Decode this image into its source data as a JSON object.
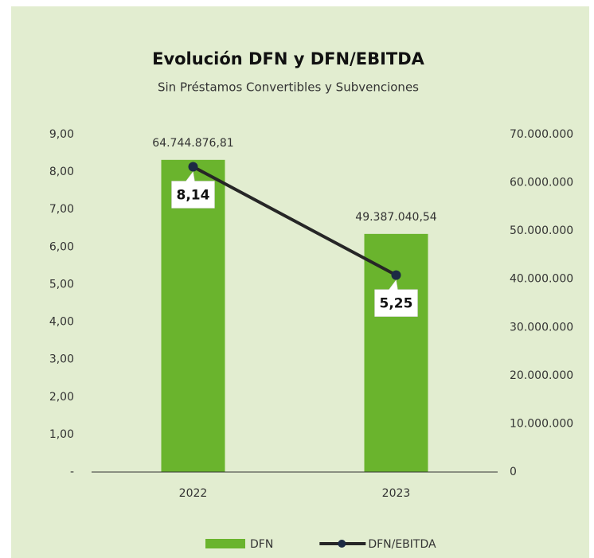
{
  "chart_data": {
    "type": "bar",
    "title": "Evolución DFN y DFN/EBITDA",
    "subtitle": "Sin Préstamos Convertibles y Subvenciones",
    "categories": [
      "2022",
      "2023"
    ],
    "series": [
      {
        "name": "DFN",
        "type": "bar",
        "axis": "y2",
        "color": "#6ab42d",
        "values": [
          64744876.81,
          49387040.54
        ],
        "value_labels": [
          "64.744.876,81",
          "49.387.040,54"
        ]
      },
      {
        "name": "DFN/EBITDA",
        "type": "line",
        "axis": "y",
        "color": "#262626",
        "values": [
          8.14,
          5.25
        ],
        "value_labels": [
          "8,14",
          "5,25"
        ]
      }
    ],
    "ylim": [
      0,
      9
    ],
    "yticks": [
      {
        "value": 0,
        "label": "-"
      },
      {
        "value": 1,
        "label": "1,00"
      },
      {
        "value": 2,
        "label": "2,00"
      },
      {
        "value": 3,
        "label": "3,00"
      },
      {
        "value": 4,
        "label": "4,00"
      },
      {
        "value": 5,
        "label": "5,00"
      },
      {
        "value": 6,
        "label": "6,00"
      },
      {
        "value": 7,
        "label": "7,00"
      },
      {
        "value": 8,
        "label": "8,00"
      },
      {
        "value": 9,
        "label": "9,00"
      }
    ],
    "y2lim": [
      0,
      70000000
    ],
    "y2ticks": [
      0,
      {
        "value": 10000000,
        "label": "10.000.000"
      },
      {
        "value": 20000000,
        "label": "20.000.000"
      },
      {
        "value": 30000000,
        "label": "30.000.000"
      },
      {
        "value": 40000000,
        "label": "40.000.000"
      },
      {
        "value": 50000000,
        "label": "50.000.000"
      },
      {
        "value": 60000000,
        "label": "60.000.000"
      },
      {
        "value": 70000000,
        "label": "70.000.000"
      }
    ],
    "legend": "bottom"
  }
}
